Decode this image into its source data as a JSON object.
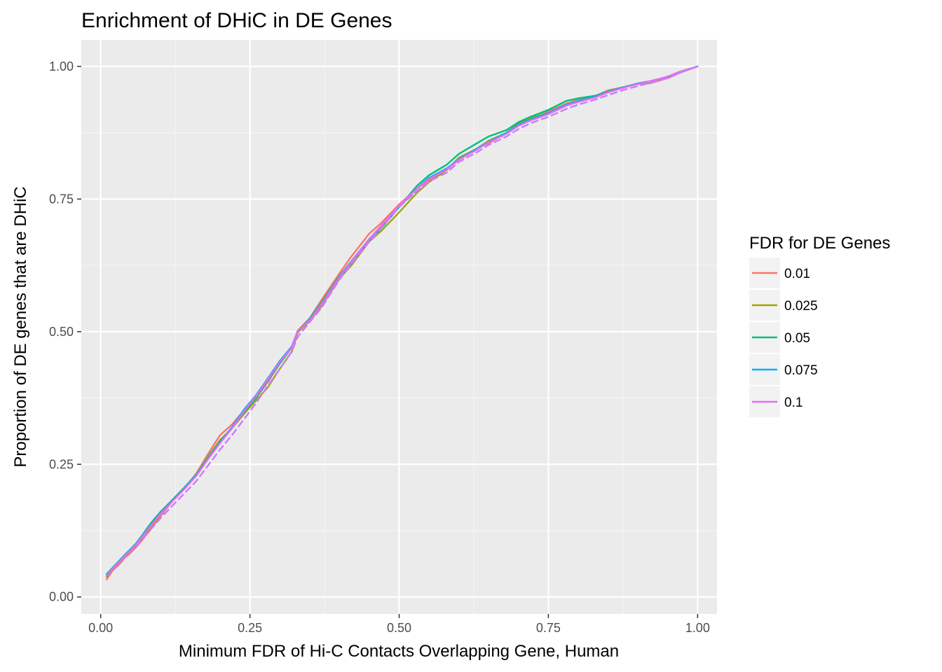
{
  "chart_data": {
    "type": "line",
    "title": "Enrichment of DHiC in DE Genes",
    "xlabel": "Minimum FDR of Hi-C Contacts Overlapping Gene, Human",
    "ylabel": "Proportion of DE genes that are DHiC",
    "xlim": [
      -0.0325,
      1.0325
    ],
    "ylim": [
      -0.032,
      1.05
    ],
    "x_ticks": [
      0.0,
      0.25,
      0.5,
      0.75,
      1.0
    ],
    "x_tick_labels": [
      "0.00",
      "0.25",
      "0.50",
      "0.75",
      "1.00"
    ],
    "y_ticks": [
      0.0,
      0.25,
      0.5,
      0.75,
      1.0
    ],
    "y_tick_labels": [
      "0.00",
      "0.25",
      "0.50",
      "0.75",
      "1.00"
    ],
    "grid": true,
    "legend": {
      "title": "FDR for DE Genes",
      "position": "right"
    },
    "x": [
      0.01,
      0.02,
      0.03,
      0.04,
      0.05,
      0.06,
      0.07,
      0.08,
      0.09,
      0.1,
      0.12,
      0.14,
      0.16,
      0.18,
      0.2,
      0.22,
      0.24,
      0.26,
      0.28,
      0.3,
      0.32,
      0.33,
      0.35,
      0.37,
      0.4,
      0.42,
      0.45,
      0.47,
      0.5,
      0.53,
      0.55,
      0.58,
      0.6,
      0.63,
      0.65,
      0.68,
      0.7,
      0.72,
      0.75,
      0.78,
      0.8,
      0.83,
      0.85,
      0.88,
      0.9,
      0.92,
      0.95,
      0.97,
      1.0
    ],
    "series": [
      {
        "name": "0.01",
        "color": "#F8766D",
        "dashed": false,
        "values": [
          0.033,
          0.05,
          0.06,
          0.073,
          0.083,
          0.095,
          0.108,
          0.122,
          0.137,
          0.152,
          0.18,
          0.205,
          0.232,
          0.27,
          0.305,
          0.325,
          0.352,
          0.375,
          0.405,
          0.44,
          0.47,
          0.502,
          0.525,
          0.56,
          0.61,
          0.642,
          0.685,
          0.705,
          0.74,
          0.77,
          0.785,
          0.805,
          0.825,
          0.845,
          0.855,
          0.875,
          0.89,
          0.9,
          0.915,
          0.93,
          0.937,
          0.945,
          0.955,
          0.962,
          0.967,
          0.968,
          0.978,
          0.988,
          1.0
        ]
      },
      {
        "name": "0.025",
        "color": "#A3A500",
        "dashed": false,
        "values": [
          0.038,
          0.052,
          0.064,
          0.076,
          0.087,
          0.099,
          0.112,
          0.126,
          0.14,
          0.156,
          0.182,
          0.204,
          0.232,
          0.265,
          0.296,
          0.318,
          0.345,
          0.37,
          0.395,
          0.43,
          0.462,
          0.498,
          0.52,
          0.548,
          0.6,
          0.625,
          0.67,
          0.69,
          0.725,
          0.762,
          0.782,
          0.805,
          0.828,
          0.845,
          0.86,
          0.875,
          0.892,
          0.903,
          0.912,
          0.927,
          0.935,
          0.943,
          0.952,
          0.962,
          0.967,
          0.972,
          0.98,
          0.99,
          1.0
        ]
      },
      {
        "name": "0.05",
        "color": "#00BF7D",
        "dashed": false,
        "values": [
          0.043,
          0.055,
          0.067,
          0.079,
          0.09,
          0.102,
          0.117,
          0.133,
          0.147,
          0.16,
          0.183,
          0.206,
          0.23,
          0.262,
          0.293,
          0.318,
          0.348,
          0.375,
          0.408,
          0.44,
          0.47,
          0.5,
          0.525,
          0.555,
          0.605,
          0.633,
          0.675,
          0.698,
          0.735,
          0.775,
          0.795,
          0.815,
          0.835,
          0.855,
          0.868,
          0.88,
          0.895,
          0.905,
          0.918,
          0.935,
          0.94,
          0.945,
          0.953,
          0.962,
          0.968,
          0.972,
          0.98,
          0.99,
          1.0
        ]
      },
      {
        "name": "0.075",
        "color": "#00B0F6",
        "dashed": false,
        "values": [
          0.042,
          0.054,
          0.066,
          0.078,
          0.089,
          0.101,
          0.116,
          0.131,
          0.145,
          0.158,
          0.181,
          0.204,
          0.23,
          0.262,
          0.292,
          0.32,
          0.353,
          0.38,
          0.412,
          0.445,
          0.472,
          0.5,
          0.523,
          0.552,
          0.602,
          0.63,
          0.672,
          0.695,
          0.735,
          0.77,
          0.79,
          0.808,
          0.825,
          0.845,
          0.858,
          0.875,
          0.89,
          0.9,
          0.912,
          0.928,
          0.935,
          0.943,
          0.952,
          0.962,
          0.968,
          0.972,
          0.98,
          0.99,
          1.0
        ]
      },
      {
        "name": "0.1",
        "color": "#E76BF3",
        "dashed": false,
        "values": [
          0.04,
          0.053,
          0.065,
          0.077,
          0.088,
          0.1,
          0.114,
          0.129,
          0.143,
          0.156,
          0.18,
          0.203,
          0.228,
          0.26,
          0.29,
          0.318,
          0.35,
          0.378,
          0.41,
          0.443,
          0.47,
          0.5,
          0.522,
          0.552,
          0.603,
          0.632,
          0.675,
          0.7,
          0.738,
          0.77,
          0.788,
          0.806,
          0.824,
          0.843,
          0.857,
          0.873,
          0.888,
          0.898,
          0.91,
          0.926,
          0.933,
          0.942,
          0.951,
          0.961,
          0.967,
          0.972,
          0.981,
          0.99,
          1.0
        ]
      },
      {
        "name": "",
        "color": "#C77CFF",
        "dashed": true,
        "values": [
          0.04,
          0.052,
          0.063,
          0.075,
          0.086,
          0.097,
          0.11,
          0.122,
          0.135,
          0.148,
          0.172,
          0.195,
          0.218,
          0.248,
          0.278,
          0.305,
          0.335,
          0.365,
          0.398,
          0.43,
          0.462,
          0.49,
          0.518,
          0.545,
          0.598,
          0.628,
          0.67,
          0.695,
          0.735,
          0.765,
          0.783,
          0.8,
          0.82,
          0.838,
          0.852,
          0.868,
          0.882,
          0.893,
          0.905,
          0.92,
          0.928,
          0.938,
          0.946,
          0.957,
          0.963,
          0.969,
          0.978,
          0.988,
          1.0
        ]
      }
    ]
  }
}
